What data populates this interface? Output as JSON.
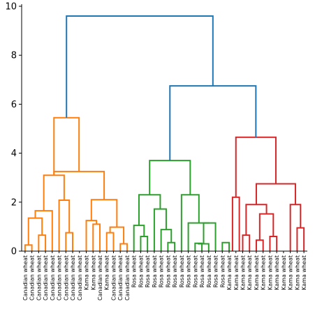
{
  "chart_data": {
    "type": "dendrogram",
    "title": "",
    "xlabel": "",
    "ylabel": "",
    "ylim": [
      0,
      10
    ],
    "yticks": [
      "0",
      "2",
      "4",
      "6",
      "8",
      "10"
    ],
    "grid": false,
    "colors": {
      "orange": "#ff7f0e",
      "green": "#2ca02c",
      "red": "#d62728",
      "blue": "#1f77b4",
      "axis": "#000000"
    },
    "leaves": [
      "Canadian wheat",
      "Canadian wheat",
      "Canadian wheat",
      "Canadian wheat",
      "Canadian wheat",
      "Canadian wheat",
      "Canadian wheat",
      "Canadian wheat",
      "Canadian wheat",
      "Kama wheat",
      "Kama wheat",
      "Canadian wheat",
      "Kama wheat",
      "Canadian wheat",
      "Canadian wheat",
      "Canadian wheat",
      "Rosa wheat",
      "Rosa wheat",
      "Rosa wheat",
      "Rosa wheat",
      "Rosa wheat",
      "Rosa wheat",
      "Rosa wheat",
      "Rosa wheat",
      "Rosa wheat",
      "Rosa wheat",
      "Rosa wheat",
      "Rosa wheat",
      "Rosa wheat",
      "Rosa wheat",
      "Kama wheat",
      "Kama wheat",
      "Kama wheat",
      "Kama wheat",
      "Kama wheat",
      "Kama wheat",
      "Kama wheat",
      "Kama wheat",
      "Kama wheat",
      "Kama wheat",
      "Kama wheat",
      "Kama wheat"
    ],
    "links": [
      {
        "left": 0,
        "right": 1,
        "height": 0.25,
        "color": "orange"
      },
      {
        "left": 2,
        "right": 3,
        "height": 0.65,
        "color": "orange"
      },
      {
        "left": 6,
        "right": 7,
        "height": 0.75,
        "color": "orange"
      },
      {
        "left": 10,
        "right": 11,
        "height": 1.1,
        "color": "orange"
      },
      {
        "left": 12,
        "right": 13,
        "height": 0.75,
        "color": "orange"
      },
      {
        "left": 14,
        "right": 15,
        "height": 0.3,
        "color": "orange"
      },
      {
        "left": "L0",
        "right": "L1",
        "height": 1.35,
        "color": "orange"
      },
      {
        "left": 9,
        "right": "L3",
        "height": 1.25,
        "color": "orange"
      },
      {
        "left": "L4",
        "right": "L5",
        "height": 0.98,
        "color": "orange"
      },
      {
        "left": "L7",
        "right": "L8",
        "height": 2.1,
        "color": "orange"
      },
      {
        "left": 5,
        "right": "L2",
        "height": 2.08,
        "color": "orange"
      },
      {
        "left": 4,
        "right": "L6",
        "height": 1.65,
        "color": "orange"
      },
      {
        "left": "L11",
        "right": "L10",
        "height": 3.1,
        "color": "orange"
      },
      {
        "left": "L9",
        "right": "L12",
        "height": 3.25,
        "color": "orange"
      },
      {
        "left": "L13",
        "right": "L12",
        "height": 5.45,
        "color": "orange"
      },
      {
        "left": 17,
        "right": 18,
        "height": 0.6,
        "color": "green"
      },
      {
        "left": 16,
        "right": "L15",
        "height": 1.05,
        "color": "green"
      },
      {
        "left": 21,
        "right": 22,
        "height": 0.35,
        "color": "green"
      },
      {
        "left": 20,
        "right": "L17",
        "height": 0.88,
        "color": "green"
      },
      {
        "left": 19,
        "right": "L18",
        "height": 1.72,
        "color": "green"
      },
      {
        "left": "L16",
        "right": "L19",
        "height": 2.3,
        "color": "green"
      },
      {
        "left": 25,
        "right": 26,
        "height": 0.32,
        "color": "green"
      },
      {
        "left": 27,
        "right": "L21",
        "height": 0.3,
        "color": "green"
      },
      {
        "left": "L22",
        "right": 28,
        "height": 1.15,
        "color": "green"
      },
      {
        "left": 24,
        "right": "L23",
        "height": 1.15,
        "color": "green"
      },
      {
        "left": 23,
        "right": "L24",
        "height": 2.3,
        "color": "green"
      },
      {
        "left": "L20",
        "right": "L25",
        "height": 3.7,
        "color": "green"
      },
      {
        "left": 29,
        "right": 30,
        "height": 0.35,
        "color": "green"
      },
      {
        "left": 32,
        "right": 33,
        "height": 0.65,
        "color": "red"
      },
      {
        "left": 34,
        "right": 35,
        "height": 0.45,
        "color": "red"
      },
      {
        "left": 36,
        "right": 37,
        "height": 0.6,
        "color": "red"
      },
      {
        "left": "L29",
        "right": "L30",
        "height": 1.52,
        "color": "red"
      },
      {
        "left": "L28",
        "right": "L31",
        "height": 1.9,
        "color": "red"
      },
      {
        "left": 40,
        "right": 41,
        "height": 0.95,
        "color": "red"
      },
      {
        "left": 39,
        "right": "L33",
        "height": 1.9,
        "color": "red"
      },
      {
        "left": "L32",
        "right": "L34",
        "height": 2.75,
        "color": "red"
      },
      {
        "left": 31,
        "right": 31,
        "height": 2.2,
        "color": "red"
      },
      {
        "left": "L36",
        "right": "L35",
        "height": 4.65,
        "color": "red"
      },
      {
        "left": "L26",
        "right": "L37",
        "height": 6.75,
        "color": "blue"
      },
      {
        "left": "L14",
        "right": "L38",
        "height": 9.6,
        "color": "blue"
      }
    ]
  }
}
